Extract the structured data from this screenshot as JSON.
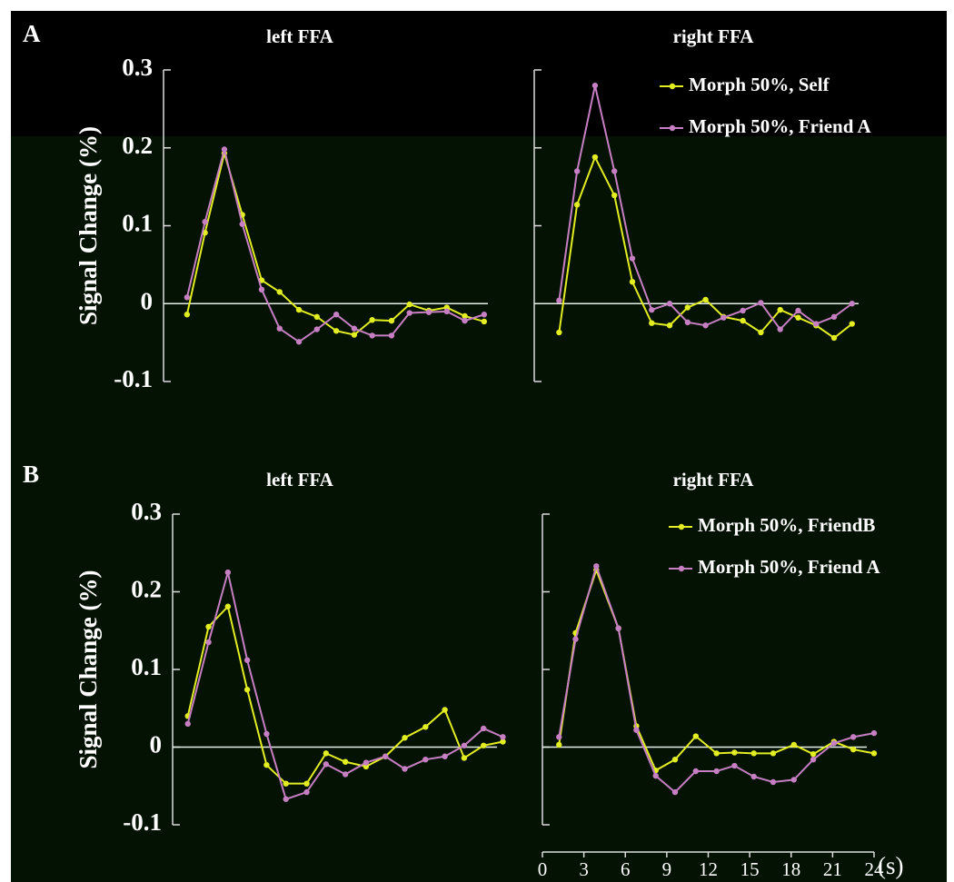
{
  "chart_data": [
    {
      "type": "line",
      "panel": "A",
      "title": "left FFA",
      "ylabel": "Signal Change (%)",
      "xlim": [
        0,
        24
      ],
      "ylim": [
        -0.1,
        0.3
      ],
      "yticks": [
        -0.1,
        0,
        0.1,
        0.2,
        0.3
      ],
      "show_ytick_labels": true,
      "x": [
        1.7,
        3.0,
        4.4,
        5.7,
        7.1,
        8.4,
        9.8,
        11.1,
        12.5,
        13.8,
        15.1,
        16.5,
        17.8,
        19.2,
        20.5,
        21.8,
        23.2
      ],
      "series": [
        {
          "color": "#e3ee22",
          "values": [
            -0.014,
            0.091,
            0.193,
            0.114,
            0.03,
            0.015,
            -0.008,
            -0.017,
            -0.035,
            -0.04,
            -0.021,
            -0.022,
            -0.001,
            -0.009,
            -0.005,
            -0.016,
            -0.023
          ]
        },
        {
          "color": "#c67fc2",
          "values": [
            0.008,
            0.105,
            0.198,
            0.102,
            0.018,
            -0.032,
            -0.049,
            -0.033,
            -0.014,
            -0.032,
            -0.041,
            -0.041,
            -0.012,
            -0.011,
            -0.01,
            -0.022,
            -0.014
          ]
        }
      ]
    },
    {
      "type": "line",
      "title": "right FFA",
      "xlim": [
        0,
        24
      ],
      "ylim": [
        -0.1,
        0.3
      ],
      "yticks": [
        -0.1,
        0,
        0.1,
        0.2,
        0.3
      ],
      "show_ytick_labels": false,
      "x": [
        1.8,
        3.1,
        4.4,
        5.8,
        7.1,
        8.5,
        9.8,
        11.1,
        12.4,
        13.7,
        15.1,
        16.4,
        17.8,
        19.1,
        20.4,
        21.7,
        23.0
      ],
      "series": [
        {
          "name": "Morph 50%, Self",
          "color": "#e3ee22",
          "values": [
            -0.037,
            0.127,
            0.188,
            0.139,
            0.028,
            -0.025,
            -0.028,
            -0.005,
            0.005,
            -0.017,
            -0.022,
            -0.037,
            -0.008,
            -0.018,
            -0.028,
            -0.044,
            -0.026
          ]
        },
        {
          "name": "Morph 50%, Friend A",
          "color": "#c67fc2",
          "values": [
            0.004,
            0.17,
            0.28,
            0.17,
            0.058,
            -0.008,
            0.0,
            -0.024,
            -0.028,
            -0.018,
            -0.009,
            0.001,
            -0.033,
            -0.009,
            -0.026,
            -0.017,
            0.0
          ]
        }
      ]
    },
    {
      "type": "line",
      "panel": "B",
      "title": "left FFA",
      "ylabel": "Signal Change (%)",
      "xlim": [
        0,
        24
      ],
      "ylim": [
        -0.1,
        0.3
      ],
      "yticks": [
        -0.1,
        0,
        0.1,
        0.2,
        0.3
      ],
      "show_ytick_labels": true,
      "x": [
        1.1,
        2.6,
        4.0,
        5.4,
        6.8,
        8.2,
        9.7,
        11.1,
        12.5,
        14.0,
        15.4,
        16.8,
        18.3,
        19.7,
        21.1,
        22.5,
        23.9
      ],
      "series": [
        {
          "color": "#e3ee22",
          "values": [
            0.04,
            0.155,
            0.181,
            0.074,
            -0.023,
            -0.047,
            -0.047,
            -0.008,
            -0.019,
            -0.025,
            -0.012,
            0.012,
            0.026,
            0.048,
            -0.014,
            0.002,
            0.007
          ]
        },
        {
          "color": "#c67fc2",
          "values": [
            0.03,
            0.135,
            0.225,
            0.112,
            0.017,
            -0.067,
            -0.058,
            -0.022,
            -0.035,
            -0.02,
            -0.012,
            -0.028,
            -0.016,
            -0.012,
            0.002,
            0.024,
            0.013
          ]
        }
      ]
    },
    {
      "type": "line",
      "title": "right FFA",
      "xlabel": "(s)",
      "xlim": [
        0,
        24
      ],
      "xticks": [
        0,
        3,
        6,
        9,
        12,
        15,
        18,
        21,
        24
      ],
      "ylim": [
        -0.1,
        0.3
      ],
      "yticks": [
        -0.1,
        0,
        0.1,
        0.2,
        0.3
      ],
      "show_ytick_labels": false,
      "x": [
        1.2,
        2.4,
        3.9,
        5.5,
        6.8,
        8.2,
        9.6,
        11.1,
        12.6,
        13.9,
        15.3,
        16.7,
        18.2,
        19.6,
        21.1,
        22.5,
        24.0
      ],
      "series": [
        {
          "name": "Morph 50%, FriendB",
          "color": "#e3ee22",
          "values": [
            0.003,
            0.147,
            0.228,
            0.153,
            0.027,
            -0.03,
            -0.016,
            0.014,
            -0.008,
            -0.007,
            -0.008,
            -0.008,
            0.003,
            -0.009,
            0.007,
            -0.003,
            -0.008
          ]
        },
        {
          "name": "Morph 50%, Friend A",
          "color": "#c67fc2",
          "values": [
            0.013,
            0.139,
            0.233,
            0.153,
            0.022,
            -0.037,
            -0.058,
            -0.031,
            -0.031,
            -0.024,
            -0.038,
            -0.045,
            -0.042,
            -0.016,
            0.005,
            0.013,
            0.018
          ]
        }
      ]
    }
  ]
}
